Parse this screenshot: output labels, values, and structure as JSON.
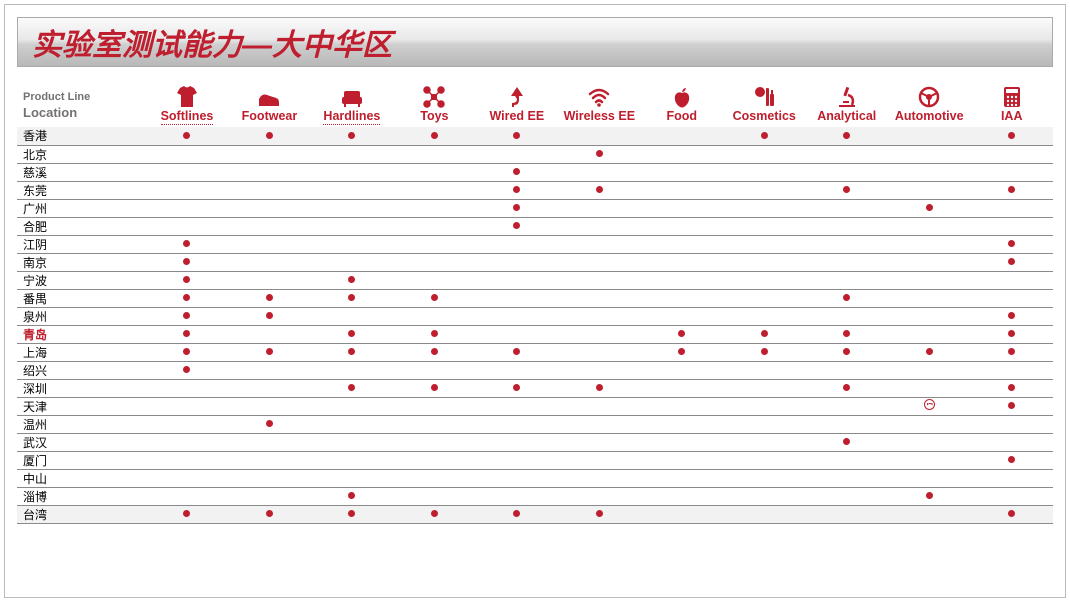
{
  "title": "实验室测试能力—大中华区",
  "header": {
    "productLine": "Product Line",
    "location": "Location"
  },
  "colors": {
    "accent": "#be1e2d",
    "titleGradientTop": "#fbfbfb",
    "titleGradientBottom": "#b8b8b8",
    "gridLine": "#8a8a8a",
    "shade": "#f2f2f2",
    "labelGrey": "#767171"
  },
  "productLines": [
    {
      "key": "softlines",
      "label": "Softlines",
      "icon": "tshirt-icon",
      "underline": true
    },
    {
      "key": "footwear",
      "label": "Footwear",
      "icon": "shoe-icon",
      "underline": false
    },
    {
      "key": "hardlines",
      "label": "Hardlines",
      "icon": "sofa-icon",
      "underline": true
    },
    {
      "key": "toys",
      "label": "Toys",
      "icon": "drone-icon",
      "underline": false
    },
    {
      "key": "wiredee",
      "label": "Wired EE",
      "icon": "plug-icon",
      "underline": false
    },
    {
      "key": "wirelessee",
      "label": "Wireless EE",
      "icon": "wifi-icon",
      "underline": false
    },
    {
      "key": "food",
      "label": "Food",
      "icon": "apple-icon",
      "underline": false
    },
    {
      "key": "cosmetics",
      "label": "Cosmetics",
      "icon": "cosmetics-icon",
      "underline": false
    },
    {
      "key": "analytical",
      "label": "Analytical",
      "icon": "microscope-icon",
      "underline": false
    },
    {
      "key": "automotive",
      "label": "Automotive",
      "icon": "wheel-icon",
      "underline": false
    },
    {
      "key": "iaa",
      "label": "IAA",
      "icon": "calculator-icon",
      "underline": false
    }
  ],
  "locations": [
    {
      "name": "香港",
      "highlight": false,
      "shade": true,
      "marks": [
        "dot",
        "dot",
        "dot",
        "dot",
        "dot",
        "",
        "",
        "dot",
        "dot",
        "",
        "dot"
      ]
    },
    {
      "name": "北京",
      "highlight": false,
      "shade": false,
      "marks": [
        "",
        "",
        "",
        "",
        "",
        "dot",
        "",
        "",
        "",
        "",
        ""
      ]
    },
    {
      "name": "慈溪",
      "highlight": false,
      "shade": false,
      "marks": [
        "",
        "",
        "",
        "",
        "dot",
        "",
        "",
        "",
        "",
        "",
        ""
      ]
    },
    {
      "name": "东莞",
      "highlight": false,
      "shade": false,
      "marks": [
        "",
        "",
        "",
        "",
        "dot",
        "dot",
        "",
        "",
        "dot",
        "",
        "dot"
      ]
    },
    {
      "name": "广州",
      "highlight": false,
      "shade": false,
      "marks": [
        "",
        "",
        "",
        "",
        "dot",
        "",
        "",
        "",
        "",
        "dot",
        ""
      ]
    },
    {
      "name": "合肥",
      "highlight": false,
      "shade": false,
      "marks": [
        "",
        "",
        "",
        "",
        "dot",
        "",
        "",
        "",
        "",
        "",
        ""
      ]
    },
    {
      "name": "江阴",
      "highlight": false,
      "shade": false,
      "marks": [
        "dot",
        "",
        "",
        "",
        "",
        "",
        "",
        "",
        "",
        "",
        "dot"
      ]
    },
    {
      "name": "南京",
      "highlight": false,
      "shade": false,
      "marks": [
        "dot",
        "",
        "",
        "",
        "",
        "",
        "",
        "",
        "",
        "",
        "dot"
      ]
    },
    {
      "name": "宁波",
      "highlight": false,
      "shade": false,
      "marks": [
        "dot",
        "",
        "dot",
        "",
        "",
        "",
        "",
        "",
        "",
        "",
        ""
      ]
    },
    {
      "name": "番禺",
      "highlight": false,
      "shade": false,
      "marks": [
        "dot",
        "dot",
        "dot",
        "dot",
        "",
        "",
        "",
        "",
        "dot",
        "",
        ""
      ]
    },
    {
      "name": "泉州",
      "highlight": false,
      "shade": false,
      "marks": [
        "dot",
        "dot",
        "",
        "",
        "",
        "",
        "",
        "",
        "",
        "",
        "dot"
      ]
    },
    {
      "name": "青岛",
      "highlight": true,
      "shade": false,
      "marks": [
        "dot",
        "",
        "dot",
        "dot",
        "",
        "",
        "dot",
        "dot",
        "dot",
        "",
        "dot"
      ]
    },
    {
      "name": "上海",
      "highlight": false,
      "shade": false,
      "marks": [
        "dot",
        "dot",
        "dot",
        "dot",
        "dot",
        "",
        "dot",
        "dot",
        "dot",
        "dot",
        "dot"
      ]
    },
    {
      "name": "绍兴",
      "highlight": false,
      "shade": false,
      "marks": [
        "dot",
        "",
        "",
        "",
        "",
        "",
        "",
        "",
        "",
        "",
        ""
      ]
    },
    {
      "name": "深圳",
      "highlight": false,
      "shade": false,
      "marks": [
        "",
        "",
        "dot",
        "dot",
        "dot",
        "dot",
        "",
        "",
        "dot",
        "",
        "dot"
      ]
    },
    {
      "name": "天津",
      "highlight": false,
      "shade": false,
      "marks": [
        "",
        "",
        "",
        "",
        "",
        "",
        "",
        "",
        "",
        "face",
        "dot"
      ]
    },
    {
      "name": "温州",
      "highlight": false,
      "shade": false,
      "marks": [
        "",
        "dot",
        "",
        "",
        "",
        "",
        "",
        "",
        "",
        "",
        ""
      ]
    },
    {
      "name": "武汉",
      "highlight": false,
      "shade": false,
      "marks": [
        "",
        "",
        "",
        "",
        "",
        "",
        "",
        "",
        "dot",
        "",
        ""
      ]
    },
    {
      "name": "厦门",
      "highlight": false,
      "shade": false,
      "marks": [
        "",
        "",
        "",
        "",
        "",
        "",
        "",
        "",
        "",
        "",
        "dot"
      ]
    },
    {
      "name": "中山",
      "highlight": false,
      "shade": false,
      "marks": [
        "",
        "",
        "",
        "",
        "",
        "",
        "",
        "",
        "",
        "",
        ""
      ]
    },
    {
      "name": "淄博",
      "highlight": false,
      "shade": false,
      "marks": [
        "",
        "",
        "dot",
        "",
        "",
        "",
        "",
        "",
        "",
        "dot",
        ""
      ]
    },
    {
      "name": "台湾",
      "highlight": false,
      "shade": true,
      "marks": [
        "dot",
        "dot",
        "dot",
        "dot",
        "dot",
        "dot",
        "",
        "",
        "",
        "",
        "dot"
      ]
    }
  ]
}
